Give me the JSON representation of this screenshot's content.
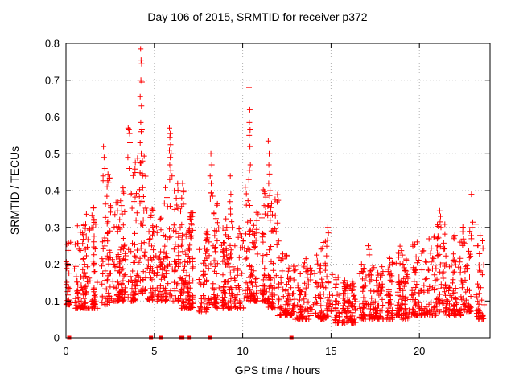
{
  "chart_data": {
    "type": "scatter",
    "title": "Day 106 of 2015, SRMTID for receiver p372",
    "xlabel": "GPS time / hours",
    "ylabel": "SRMTID / TECUs",
    "xlim": [
      0,
      24
    ],
    "ylim": [
      0,
      0.8
    ],
    "xticks": [
      0,
      5,
      10,
      15,
      20
    ],
    "yticks": [
      0,
      0.1,
      0.2,
      0.3,
      0.4,
      0.5,
      0.6,
      0.7,
      0.8
    ],
    "grid_style": "dotted",
    "legend": "none",
    "marker": "plus",
    "marker_color": "#ff0000",
    "grid_color": "#b0b0b0",
    "frame_color": "#000000",
    "seed": 20150106,
    "band_bins": [
      [
        0.0,
        0.5,
        34,
        0.09,
        0.26
      ],
      [
        0.5,
        1.0,
        44,
        0.08,
        0.31
      ],
      [
        1.0,
        1.5,
        50,
        0.08,
        0.34
      ],
      [
        1.5,
        2.0,
        52,
        0.08,
        0.37
      ],
      [
        2.0,
        2.5,
        54,
        0.09,
        0.45
      ],
      [
        2.5,
        3.0,
        50,
        0.1,
        0.38
      ],
      [
        3.0,
        3.5,
        54,
        0.1,
        0.43
      ],
      [
        3.5,
        4.0,
        54,
        0.1,
        0.48
      ],
      [
        4.0,
        4.5,
        50,
        0.12,
        0.5
      ],
      [
        4.5,
        5.0,
        44,
        0.1,
        0.35
      ],
      [
        5.0,
        5.5,
        40,
        0.1,
        0.33
      ],
      [
        5.5,
        6.0,
        48,
        0.1,
        0.43
      ],
      [
        6.0,
        6.5,
        50,
        0.1,
        0.42
      ],
      [
        6.5,
        7.0,
        54,
        0.08,
        0.4
      ],
      [
        7.0,
        7.5,
        54,
        0.08,
        0.34
      ],
      [
        7.5,
        8.0,
        50,
        0.07,
        0.3
      ],
      [
        8.0,
        8.5,
        50,
        0.08,
        0.4
      ],
      [
        8.5,
        9.0,
        44,
        0.08,
        0.3
      ],
      [
        9.0,
        9.5,
        44,
        0.08,
        0.34
      ],
      [
        9.5,
        10.0,
        44,
        0.08,
        0.3
      ],
      [
        10.0,
        10.5,
        50,
        0.1,
        0.42
      ],
      [
        10.5,
        11.0,
        44,
        0.1,
        0.35
      ],
      [
        11.0,
        11.5,
        52,
        0.1,
        0.44
      ],
      [
        11.5,
        12.0,
        52,
        0.08,
        0.4
      ],
      [
        12.0,
        12.5,
        40,
        0.06,
        0.26
      ],
      [
        12.5,
        13.0,
        40,
        0.06,
        0.22
      ],
      [
        13.0,
        13.5,
        38,
        0.05,
        0.2
      ],
      [
        13.5,
        14.0,
        38,
        0.05,
        0.22
      ],
      [
        14.0,
        14.5,
        38,
        0.05,
        0.24
      ],
      [
        14.5,
        15.0,
        40,
        0.05,
        0.27
      ],
      [
        15.0,
        15.5,
        40,
        0.04,
        0.18
      ],
      [
        15.5,
        16.0,
        42,
        0.04,
        0.16
      ],
      [
        16.0,
        16.5,
        46,
        0.04,
        0.17
      ],
      [
        16.5,
        17.0,
        46,
        0.05,
        0.2
      ],
      [
        17.0,
        17.5,
        46,
        0.05,
        0.23
      ],
      [
        17.5,
        18.0,
        46,
        0.05,
        0.2
      ],
      [
        18.0,
        18.5,
        46,
        0.05,
        0.22
      ],
      [
        18.5,
        19.0,
        44,
        0.06,
        0.25
      ],
      [
        19.0,
        19.5,
        44,
        0.05,
        0.22
      ],
      [
        19.5,
        20.0,
        44,
        0.06,
        0.27
      ],
      [
        20.0,
        20.5,
        44,
        0.06,
        0.24
      ],
      [
        20.5,
        21.0,
        44,
        0.06,
        0.28
      ],
      [
        21.0,
        21.5,
        48,
        0.07,
        0.31
      ],
      [
        21.5,
        22.0,
        44,
        0.06,
        0.25
      ],
      [
        22.0,
        22.5,
        44,
        0.06,
        0.28
      ],
      [
        22.5,
        23.0,
        50,
        0.07,
        0.32
      ],
      [
        23.0,
        23.6,
        46,
        0.05,
        0.31
      ]
    ],
    "spike_points": [
      [
        2.12,
        0.52
      ],
      [
        2.16,
        0.49
      ],
      [
        2.2,
        0.46
      ],
      [
        2.1,
        0.44
      ],
      [
        3.52,
        0.57
      ],
      [
        3.56,
        0.565
      ],
      [
        3.6,
        0.555
      ],
      [
        3.62,
        0.53
      ],
      [
        3.5,
        0.49
      ],
      [
        3.58,
        0.46
      ],
      [
        4.22,
        0.785
      ],
      [
        4.25,
        0.755
      ],
      [
        4.28,
        0.745
      ],
      [
        4.24,
        0.7
      ],
      [
        4.3,
        0.695
      ],
      [
        4.2,
        0.655
      ],
      [
        4.27,
        0.63
      ],
      [
        4.23,
        0.585
      ],
      [
        4.3,
        0.565
      ],
      [
        4.26,
        0.56
      ],
      [
        4.2,
        0.53
      ],
      [
        4.26,
        0.5
      ],
      [
        4.24,
        0.475
      ],
      [
        5.85,
        0.57
      ],
      [
        5.9,
        0.555
      ],
      [
        5.88,
        0.545
      ],
      [
        5.92,
        0.525
      ],
      [
        5.85,
        0.51
      ],
      [
        5.95,
        0.5
      ],
      [
        5.9,
        0.49
      ],
      [
        5.87,
        0.47
      ],
      [
        5.93,
        0.455
      ],
      [
        6.0,
        0.44
      ],
      [
        6.6,
        0.42
      ],
      [
        6.66,
        0.4
      ],
      [
        6.55,
        0.38
      ],
      [
        8.2,
        0.5
      ],
      [
        8.25,
        0.47
      ],
      [
        8.16,
        0.44
      ],
      [
        8.22,
        0.42
      ],
      [
        9.3,
        0.44
      ],
      [
        9.33,
        0.39
      ],
      [
        9.28,
        0.37
      ],
      [
        9.31,
        0.35
      ],
      [
        10.36,
        0.68
      ],
      [
        10.4,
        0.62
      ],
      [
        10.38,
        0.585
      ],
      [
        10.42,
        0.565
      ],
      [
        10.37,
        0.55
      ],
      [
        10.41,
        0.52
      ],
      [
        10.44,
        0.47
      ],
      [
        10.39,
        0.455
      ],
      [
        10.35,
        0.43
      ],
      [
        11.45,
        0.535
      ],
      [
        11.5,
        0.5
      ],
      [
        11.48,
        0.47
      ],
      [
        11.52,
        0.445
      ],
      [
        11.47,
        0.42
      ],
      [
        11.55,
        0.4
      ],
      [
        14.82,
        0.3
      ],
      [
        14.85,
        0.285
      ],
      [
        14.8,
        0.265
      ],
      [
        17.1,
        0.25
      ],
      [
        17.15,
        0.24
      ],
      [
        21.15,
        0.345
      ],
      [
        21.2,
        0.33
      ],
      [
        21.17,
        0.315
      ],
      [
        21.22,
        0.3
      ],
      [
        22.95,
        0.39
      ],
      [
        22.98,
        0.3
      ],
      [
        23.3,
        0.25
      ]
    ],
    "zero_squares": [
      [
        0.18,
        5
      ],
      [
        4.81,
        5
      ],
      [
        5.37,
        5
      ],
      [
        6.54,
        7
      ],
      [
        6.93,
        2
      ],
      [
        7.02,
        2
      ],
      [
        8.15,
        4
      ],
      [
        12.76,
        5
      ]
    ]
  }
}
